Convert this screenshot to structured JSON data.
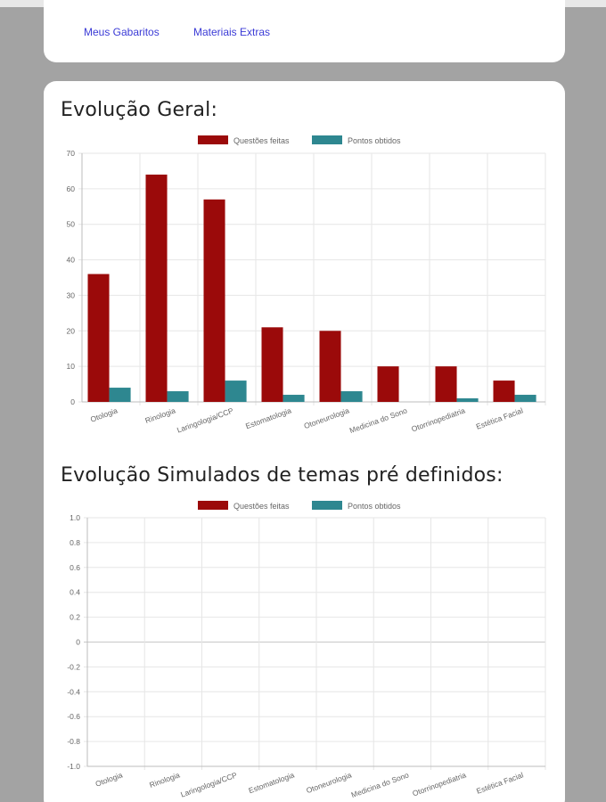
{
  "nav": {
    "links": [
      {
        "label": "Meus Gabaritos"
      },
      {
        "label": "Materiais Extras"
      }
    ]
  },
  "charts": {
    "colors": {
      "questoes": "#9b0a0a",
      "pontos": "#2e8790"
    }
  },
  "chart_data": [
    {
      "type": "bar",
      "title": "Evolução Geral:",
      "categories": [
        "Otologia",
        "Rinologia",
        "Laringologia/CCP",
        "Estomatologia",
        "Otoneurologia",
        "Medicina do Sono",
        "Otorrinopediatria",
        "Estética Facial"
      ],
      "series": [
        {
          "name": "Questões feitas",
          "values": [
            36,
            64,
            57,
            21,
            20,
            10,
            10,
            6
          ]
        },
        {
          "name": "Pontos obtidos",
          "values": [
            4,
            3,
            6,
            2,
            3,
            0,
            1,
            2
          ]
        }
      ],
      "ylim": [
        0,
        70
      ],
      "yticks": [
        "70",
        "60",
        "50",
        "40",
        "30",
        "20",
        "10",
        "0"
      ],
      "legend": "top-center",
      "grid": true
    },
    {
      "type": "bar",
      "title": "Evolução Simulados de temas pré definidos:",
      "categories": [
        "Otologia",
        "Rinologia",
        "Laringologia/CCP",
        "Estomatologia",
        "Otoneurologia",
        "Medicina do Sono",
        "Otorrinopediatria",
        "Estética Facial"
      ],
      "series": [
        {
          "name": "Questões feitas",
          "values": [
            0,
            0,
            0,
            0,
            0,
            0,
            0,
            0
          ]
        },
        {
          "name": "Pontos obtidos",
          "values": [
            0,
            0,
            0,
            0,
            0,
            0,
            0,
            0
          ]
        }
      ],
      "ylim": [
        -1,
        1
      ],
      "yticks": [
        "1.0",
        "0.8",
        "0.6",
        "0.4",
        "0.2",
        "0",
        "-0.2",
        "-0.4",
        "-0.6",
        "-0.8",
        "-1.0"
      ],
      "legend": "top-center",
      "grid": true
    }
  ]
}
